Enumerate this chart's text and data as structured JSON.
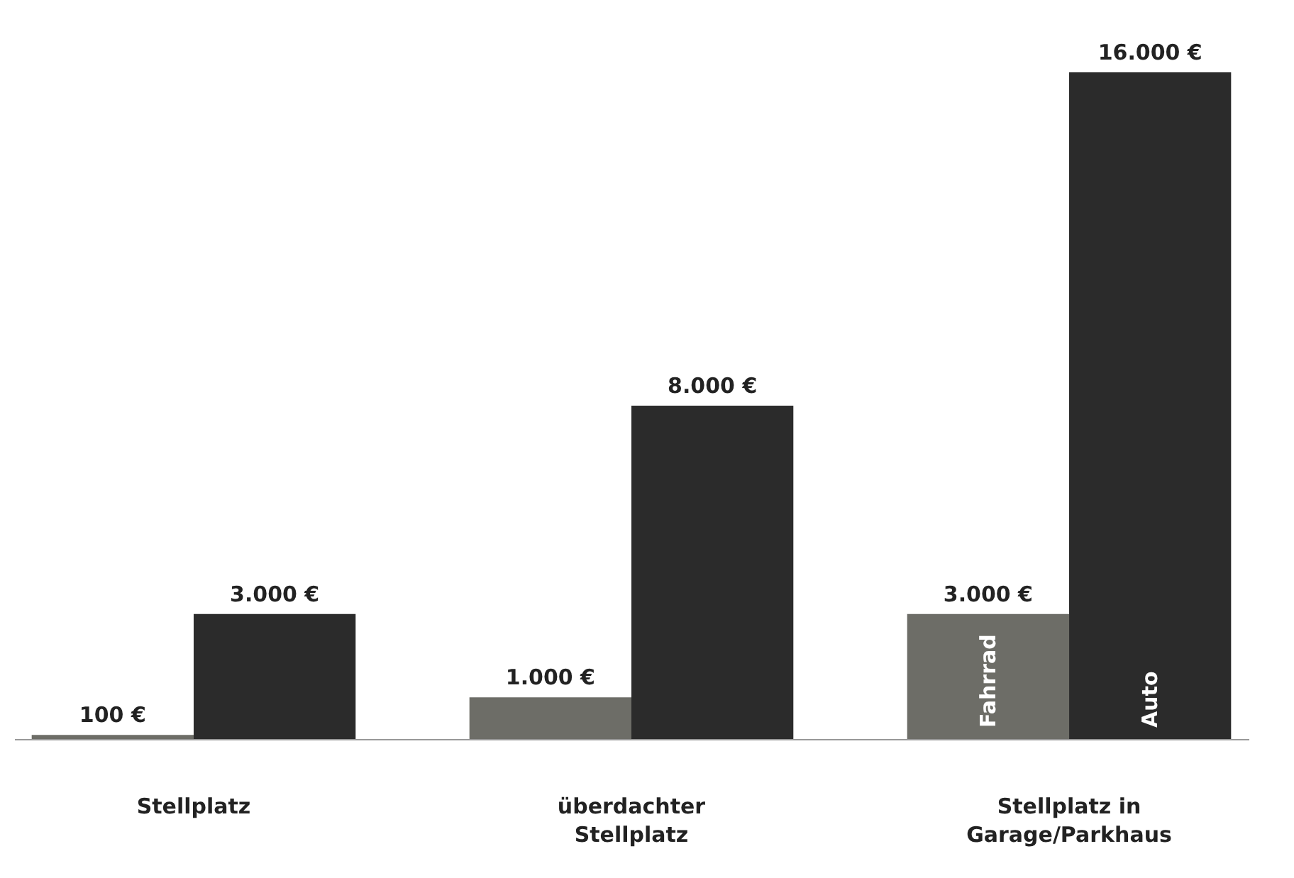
{
  "chart_data": {
    "type": "bar",
    "categories": [
      "Stellplatz",
      "überdachter\nStellplatz",
      "Stellplatz in\nGarage/Parkhaus"
    ],
    "series": [
      {
        "name": "Fahrrad",
        "color": "#6d6d67",
        "values": [
          100,
          1000,
          3000
        ],
        "value_labels": [
          "100 €",
          "1.000 €",
          "3.000 €"
        ]
      },
      {
        "name": "Auto",
        "color": "#2b2b2b",
        "values": [
          3000,
          8000,
          16000
        ],
        "value_labels": [
          "3.000 €",
          "8.000 €",
          "16.000 €"
        ]
      }
    ],
    "legend": false,
    "grid": false
  }
}
